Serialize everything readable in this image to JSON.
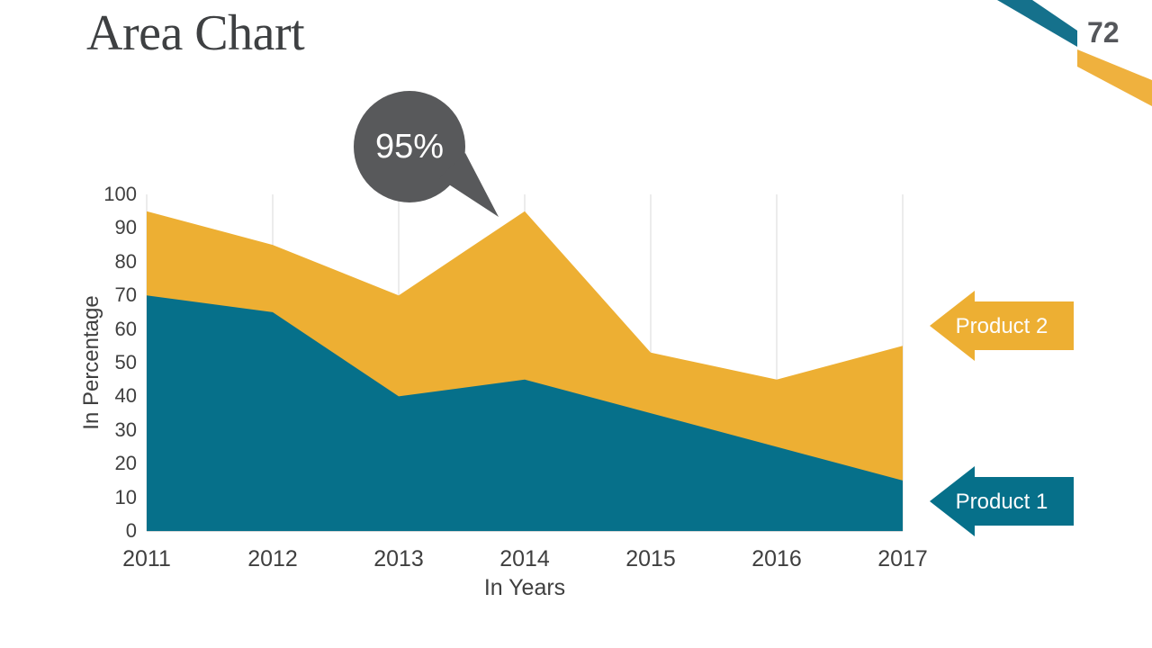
{
  "header": {
    "title": "Area Chart",
    "page_number": "72"
  },
  "decor": {
    "ribbon_teal_color": "#15718C",
    "ribbon_yellow_color": "#EFB13E"
  },
  "annotation": {
    "label": "95%",
    "target_year": 2014,
    "color": "#58595B"
  },
  "chart_data": {
    "type": "area",
    "stacked": true,
    "x": [
      2011,
      2012,
      2013,
      2014,
      2015,
      2016,
      2017
    ],
    "series": [
      {
        "name": "Product 1",
        "values": [
          70,
          65,
          40,
          45,
          35,
          25,
          15
        ],
        "color": "#06708A"
      },
      {
        "name": "Product 2",
        "values": [
          25,
          20,
          30,
          50,
          18,
          20,
          40
        ],
        "color": "#EDAF33"
      }
    ],
    "stacked_totals": [
      95,
      85,
      70,
      95,
      53,
      45,
      55
    ],
    "xlabel": "In Years",
    "ylabel": "In Percentage",
    "ylim": [
      0,
      100
    ],
    "ytick_step": 10,
    "grid": "vertical",
    "gridline_color": "#D9D9D9",
    "legend_position": "right-arrows",
    "text_color": "#3F3F3F",
    "title_color": "#3E4042",
    "page_number_color": "#55575B"
  }
}
